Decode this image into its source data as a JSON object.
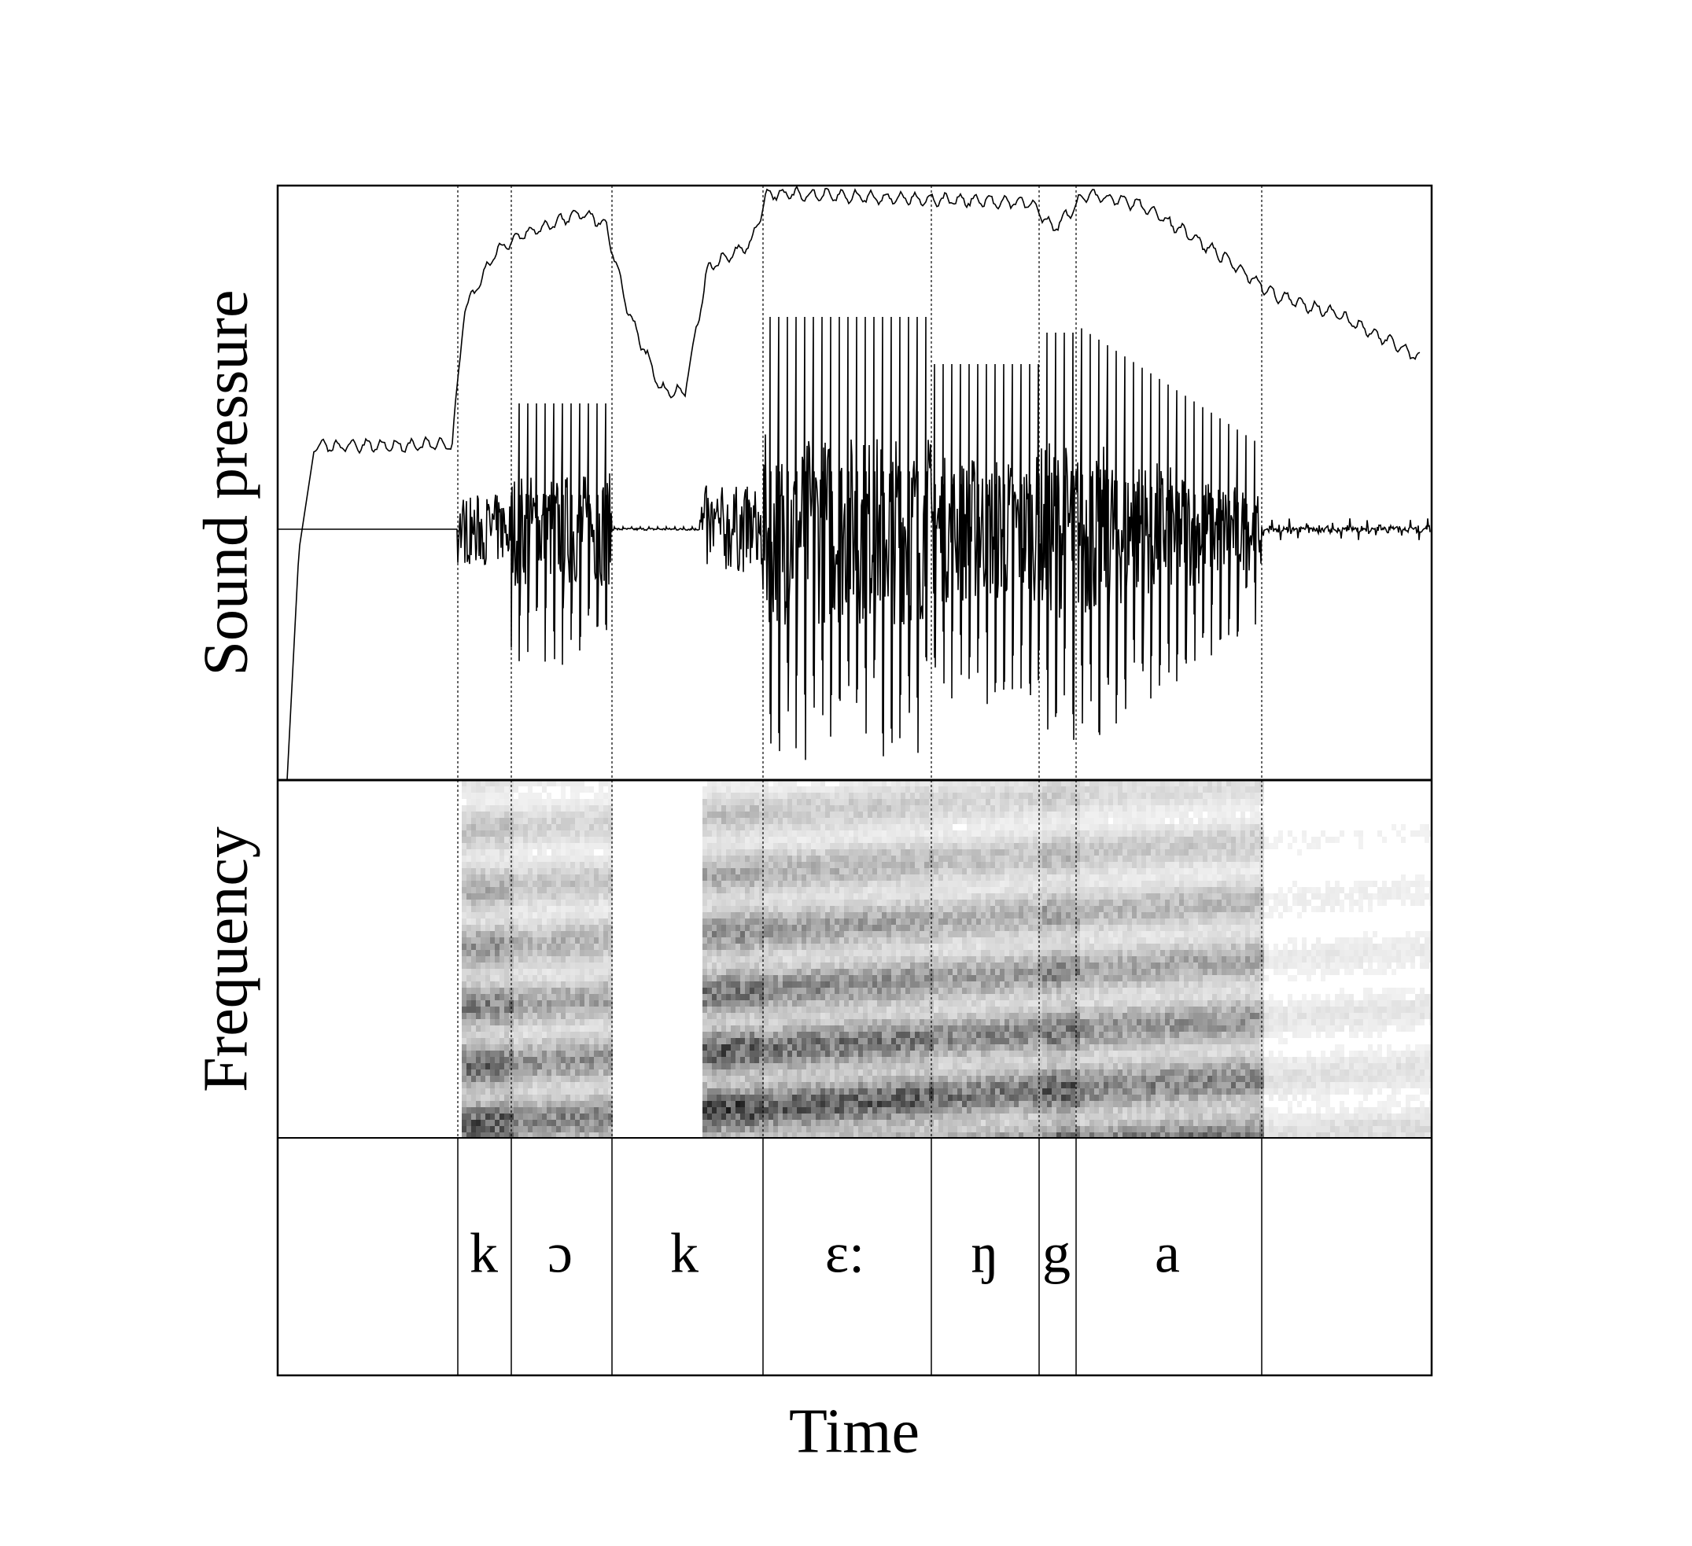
{
  "axes": {
    "top_panel_label": "Sound pressure",
    "middle_panel_label": "Frequency",
    "x_label": "Time"
  },
  "segments": [
    "k",
    "ɔ",
    "k",
    "ɛ:",
    "ŋ",
    "g",
    "a"
  ]
}
